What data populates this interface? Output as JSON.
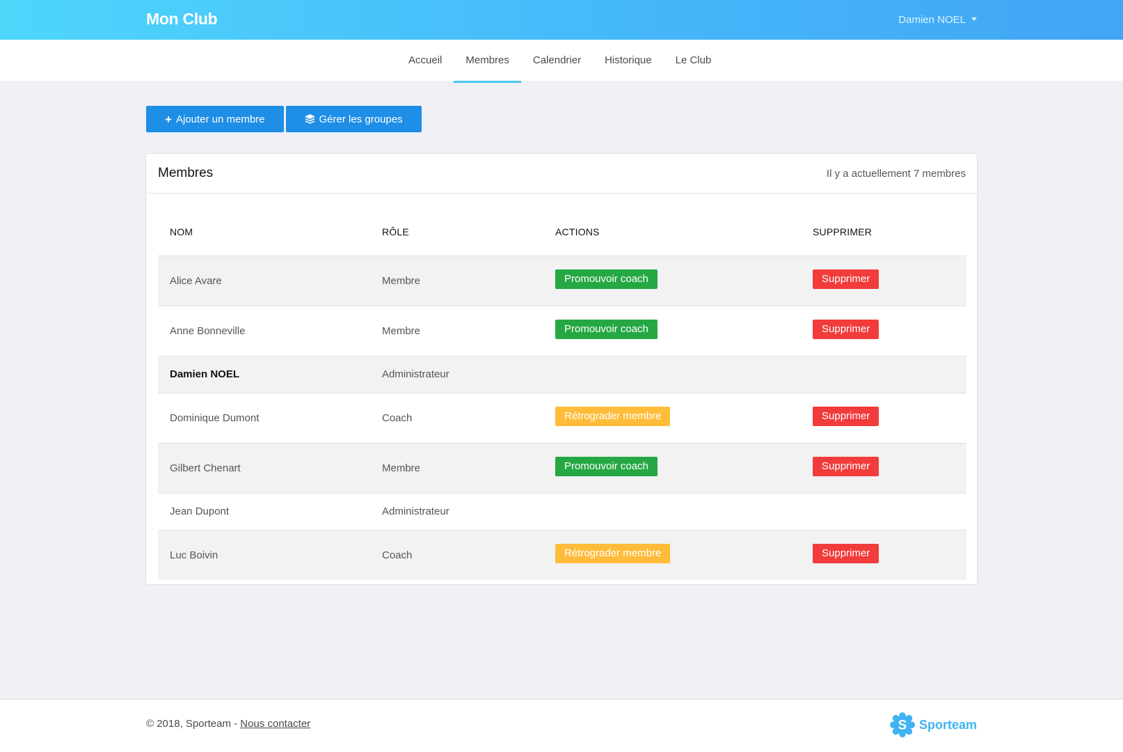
{
  "header": {
    "brand": "Mon Club",
    "user_name": "Damien NOEL"
  },
  "nav": {
    "items": [
      {
        "label": "Accueil"
      },
      {
        "label": "Membres",
        "active": true
      },
      {
        "label": "Calendrier"
      },
      {
        "label": "Historique"
      },
      {
        "label": "Le Club"
      }
    ]
  },
  "toolbar": {
    "add_member_label": "Ajouter un membre",
    "manage_groups_label": "Gérer les groupes"
  },
  "members_card": {
    "title": "Membres",
    "count_text": "Il y a actuellement 7 membres",
    "columns": [
      "NOM",
      "RÔLE",
      "ACTIONS",
      "SUPPRIMER"
    ],
    "rows": [
      {
        "name": "Alice Avare",
        "role": "Membre",
        "action": "Promouvoir coach",
        "delete": "Supprimer"
      },
      {
        "name": "Anne Bonneville",
        "role": "Membre",
        "action": "Promouvoir coach",
        "delete": "Supprimer"
      },
      {
        "name": "Damien NOEL",
        "role": "Administrateur",
        "action": "",
        "delete": ""
      },
      {
        "name": "Dominique Dumont",
        "role": "Coach",
        "action": "Rétrograder membre",
        "delete": "Supprimer"
      },
      {
        "name": "Gilbert Chenart",
        "role": "Membre",
        "action": "Promouvoir coach",
        "delete": "Supprimer"
      },
      {
        "name": "Jean Dupont",
        "role": "Administrateur",
        "action": "",
        "delete": ""
      },
      {
        "name": "Luc Boivin",
        "role": "Coach",
        "action": "Rétrograder membre",
        "delete": "Supprimer"
      }
    ]
  },
  "footer": {
    "copyright": "© 2018, Sporteam - ",
    "contact_label": "Nous contacter",
    "logo_text": "Sporteam"
  },
  "colors": {
    "header_gradient_start": "#4fd6fb",
    "header_gradient_end": "#42a5f5",
    "primary_button": "#1e8ee6",
    "promote": "#25a844",
    "demote": "#ffbc3a",
    "delete": "#f23b3b",
    "nav_active_underline": "#4cc7f3"
  }
}
